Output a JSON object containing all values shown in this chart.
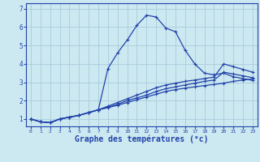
{
  "background_color": "#cce8f0",
  "grid_color": "#aaccdd",
  "line_color": "#2244aa",
  "xlabel": "Graphe des températures (°c)",
  "xlabel_fontsize": 7,
  "xlabel_fontweight": "bold",
  "xlim": [
    -0.5,
    23.5
  ],
  "ylim": [
    0.6,
    7.3
  ],
  "yticks": [
    1,
    2,
    3,
    4,
    5,
    6,
    7
  ],
  "xtick_labels": [
    "0",
    "1",
    "2",
    "3",
    "4",
    "5",
    "6",
    "7",
    "8",
    "9",
    "10",
    "11",
    "12",
    "13",
    "14",
    "15",
    "16",
    "17",
    "18",
    "19",
    "20",
    "21",
    "22",
    "23"
  ],
  "series": [
    {
      "x": [
        0,
        1,
        2,
        3,
        4,
        5,
        6,
        7,
        8,
        9,
        10,
        11,
        12,
        13,
        14,
        15,
        16,
        17,
        18,
        19,
        20,
        21,
        22,
        23
      ],
      "y": [
        1.0,
        0.85,
        0.8,
        1.0,
        1.1,
        1.2,
        1.35,
        1.5,
        3.75,
        4.6,
        5.3,
        6.1,
        6.65,
        6.55,
        5.95,
        5.75,
        4.75,
        4.0,
        3.5,
        3.4,
        3.5,
        3.3,
        3.2,
        3.1
      ]
    },
    {
      "x": [
        0,
        1,
        2,
        3,
        4,
        5,
        6,
        7,
        8,
        9,
        10,
        11,
        12,
        13,
        14,
        15,
        16,
        17,
        18,
        19,
        20,
        21,
        22,
        23
      ],
      "y": [
        1.0,
        0.85,
        0.8,
        1.0,
        1.1,
        1.2,
        1.35,
        1.5,
        1.62,
        1.75,
        1.9,
        2.05,
        2.2,
        2.35,
        2.5,
        2.6,
        2.68,
        2.75,
        2.82,
        2.88,
        2.95,
        3.05,
        3.12,
        3.18
      ]
    },
    {
      "x": [
        0,
        1,
        2,
        3,
        4,
        5,
        6,
        7,
        8,
        9,
        10,
        11,
        12,
        13,
        14,
        15,
        16,
        17,
        18,
        19,
        20,
        21,
        22,
        23
      ],
      "y": [
        1.0,
        0.85,
        0.8,
        1.0,
        1.1,
        1.2,
        1.35,
        1.5,
        1.65,
        1.8,
        2.0,
        2.15,
        2.3,
        2.5,
        2.65,
        2.75,
        2.85,
        2.95,
        3.05,
        3.12,
        3.55,
        3.45,
        3.35,
        3.25
      ]
    },
    {
      "x": [
        0,
        1,
        2,
        3,
        4,
        5,
        6,
        7,
        8,
        9,
        10,
        11,
        12,
        13,
        14,
        15,
        16,
        17,
        18,
        19,
        20,
        21,
        22,
        23
      ],
      "y": [
        1.0,
        0.85,
        0.8,
        1.0,
        1.1,
        1.2,
        1.35,
        1.5,
        1.7,
        1.9,
        2.1,
        2.3,
        2.5,
        2.7,
        2.85,
        2.95,
        3.05,
        3.12,
        3.2,
        3.28,
        4.0,
        3.85,
        3.7,
        3.55
      ]
    }
  ]
}
